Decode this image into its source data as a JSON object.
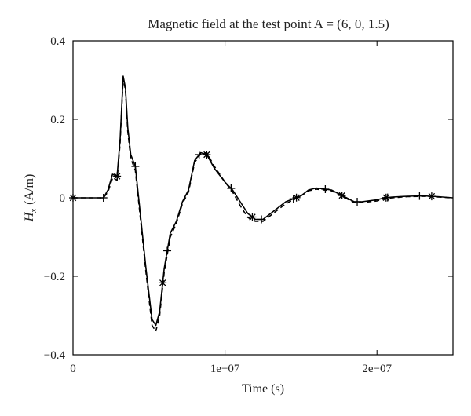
{
  "chart_data": {
    "type": "line",
    "title": "Magnetic field at the test point A = (6, 0, 1.5)",
    "xlabel": "Time (s)",
    "ylabel_symbol": "H",
    "ylabel_subscript": "x",
    "ylabel_unit": "(A/m)",
    "xlim": [
      0,
      2.5e-07
    ],
    "ylim": [
      -0.4,
      0.4
    ],
    "x_ticks": [
      {
        "value": 0,
        "label": "0"
      },
      {
        "value": 1e-07,
        "label": "1e−07"
      },
      {
        "value": 2e-07,
        "label": "2e−07"
      }
    ],
    "y_ticks": [
      {
        "value": 0.4,
        "label": "0.4"
      },
      {
        "value": 0.2,
        "label": "0.2"
      },
      {
        "value": 0,
        "label": "0"
      },
      {
        "value": -0.2,
        "label": "−0.2"
      },
      {
        "value": -0.4,
        "label": "−0.4"
      }
    ],
    "grid": false,
    "series": [
      {
        "style": "solid",
        "color": "#000000",
        "x": [
          0,
          2e-08,
          2.3e-08,
          2.6e-08,
          2.9e-08,
          3.1e-08,
          3.3e-08,
          3.45e-08,
          3.6e-08,
          3.8e-08,
          4.1e-08,
          4.4e-08,
          4.8e-08,
          5.2e-08,
          5.45e-08,
          5.7e-08,
          6e-08,
          6.4e-08,
          6.8e-08,
          7.2e-08,
          7.6e-08,
          8e-08,
          8.4e-08,
          8.8e-08,
          9.3e-08,
          1e-07,
          1.05e-07,
          1.1e-07,
          1.15e-07,
          1.2e-07,
          1.25e-07,
          1.3e-07,
          1.4e-07,
          1.5e-07,
          1.55e-07,
          1.6e-07,
          1.7e-07,
          1.75e-07,
          1.8e-07,
          1.85e-07,
          1.9e-07,
          2e-07,
          2.05e-07,
          2.1e-07,
          2.2e-07,
          2.3e-07,
          2.4e-07,
          2.5e-07
        ],
        "y": [
          0,
          0,
          0.02,
          0.06,
          0.055,
          0.15,
          0.31,
          0.28,
          0.18,
          0.11,
          0.08,
          -0.03,
          -0.18,
          -0.31,
          -0.325,
          -0.29,
          -0.18,
          -0.09,
          -0.06,
          -0.01,
          0.02,
          0.095,
          0.115,
          0.11,
          0.075,
          0.04,
          0.02,
          -0.01,
          -0.04,
          -0.055,
          -0.055,
          -0.04,
          -0.01,
          0.005,
          0.02,
          0.025,
          0.02,
          0.01,
          0.0,
          -0.01,
          -0.01,
          -0.005,
          0.0,
          0.002,
          0.004,
          0.005,
          0.003,
          0.0
        ]
      },
      {
        "style": "dashed",
        "color": "#000000",
        "x": [
          0,
          2e-08,
          2.3e-08,
          2.6e-08,
          2.9e-08,
          3.1e-08,
          3.3e-08,
          3.45e-08,
          3.6e-08,
          3.8e-08,
          4.1e-08,
          4.4e-08,
          4.8e-08,
          5.2e-08,
          5.45e-08,
          5.7e-08,
          6e-08,
          6.4e-08,
          6.8e-08,
          7.2e-08,
          7.6e-08,
          8e-08,
          8.4e-08,
          8.8e-08,
          9.3e-08,
          1e-07,
          1.05e-07,
          1.1e-07,
          1.15e-07,
          1.2e-07,
          1.25e-07,
          1.3e-07,
          1.4e-07,
          1.5e-07,
          1.55e-07,
          1.6e-07,
          1.7e-07,
          1.75e-07,
          1.8e-07,
          1.85e-07,
          1.9e-07,
          2e-07,
          2.05e-07,
          2.1e-07,
          2.2e-07,
          2.3e-07,
          2.4e-07,
          2.5e-07
        ],
        "y": [
          0,
          0,
          0.015,
          0.05,
          0.045,
          0.14,
          0.305,
          0.275,
          0.17,
          0.1,
          0.07,
          -0.04,
          -0.19,
          -0.325,
          -0.34,
          -0.3,
          -0.19,
          -0.1,
          -0.065,
          -0.015,
          0.015,
          0.09,
          0.112,
          0.115,
          0.08,
          0.04,
          0.015,
          -0.02,
          -0.05,
          -0.06,
          -0.06,
          -0.045,
          -0.015,
          0.005,
          0.018,
          0.022,
          0.018,
          0.008,
          -0.002,
          -0.012,
          -0.012,
          -0.008,
          -0.002,
          0.0,
          0.003,
          0.004,
          0.002,
          0.0
        ]
      }
    ],
    "markers": [
      {
        "symbol": "plus",
        "x": [
          2e-08,
          4.1e-08,
          6.2e-08,
          8.3e-08,
          1.04e-07,
          1.24e-07,
          1.45e-07,
          1.66e-07,
          1.87e-07,
          2.07e-07,
          2.28e-07
        ]
      },
      {
        "symbol": "star",
        "x": [
          0,
          2.9e-08,
          5.9e-08,
          8.8e-08,
          1.18e-07,
          1.47e-07,
          1.77e-07,
          2.06e-07,
          2.36e-07
        ]
      }
    ]
  }
}
